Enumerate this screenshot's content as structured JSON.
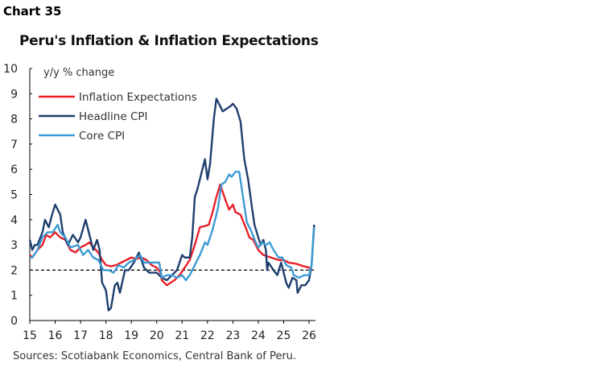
{
  "chart_label": "Chart 35",
  "source": "Sources: Scotiabank Economics, Central Bank of Peru.",
  "chart_data": {
    "type": "line",
    "title": "Peru's Inflation & Inflation Expectations",
    "ylabel": "y/y % change",
    "xlabel": "",
    "xlim": [
      15,
      26.3
    ],
    "ylim": [
      0,
      10
    ],
    "xticks": [
      "15",
      "16",
      "17",
      "18",
      "19",
      "20",
      "21",
      "22",
      "23",
      "24",
      "25",
      "26"
    ],
    "yticks": [
      "0",
      "1",
      "2",
      "3",
      "4",
      "5",
      "6",
      "7",
      "8",
      "9",
      "10"
    ],
    "reference_line": {
      "y": 2,
      "style": "dashed",
      "color": "#000000"
    },
    "legend": "top-left",
    "series": [
      {
        "name": "Inflation Expectations",
        "color": "#e8202a",
        "points": [
          [
            15.0,
            2.6
          ],
          [
            15.1,
            2.5
          ],
          [
            15.3,
            2.8
          ],
          [
            15.5,
            3.0
          ],
          [
            15.65,
            3.4
          ],
          [
            15.8,
            3.3
          ],
          [
            16.0,
            3.5
          ],
          [
            16.2,
            3.3
          ],
          [
            16.4,
            3.2
          ],
          [
            16.6,
            2.8
          ],
          [
            16.8,
            2.7
          ],
          [
            17.0,
            2.9
          ],
          [
            17.2,
            3.0
          ],
          [
            17.35,
            3.1
          ],
          [
            17.5,
            2.9
          ],
          [
            17.7,
            2.7
          ],
          [
            17.85,
            2.4
          ],
          [
            18.0,
            2.2
          ],
          [
            18.2,
            2.15
          ],
          [
            18.4,
            2.2
          ],
          [
            18.6,
            2.3
          ],
          [
            18.8,
            2.4
          ],
          [
            19.0,
            2.5
          ],
          [
            19.2,
            2.45
          ],
          [
            19.4,
            2.5
          ],
          [
            19.6,
            2.4
          ],
          [
            19.8,
            2.2
          ],
          [
            20.0,
            2.1
          ],
          [
            20.15,
            1.9
          ],
          [
            20.2,
            1.6
          ],
          [
            20.4,
            1.4
          ],
          [
            20.55,
            1.5
          ],
          [
            20.7,
            1.6
          ],
          [
            20.9,
            1.8
          ],
          [
            21.1,
            2.1
          ],
          [
            21.3,
            2.4
          ],
          [
            21.5,
            3.0
          ],
          [
            21.7,
            3.7
          ],
          [
            21.9,
            3.75
          ],
          [
            22.05,
            3.8
          ],
          [
            22.2,
            4.3
          ],
          [
            22.35,
            4.9
          ],
          [
            22.5,
            5.4
          ],
          [
            22.6,
            5.1
          ],
          [
            22.7,
            4.8
          ],
          [
            22.85,
            4.4
          ],
          [
            23.0,
            4.6
          ],
          [
            23.1,
            4.3
          ],
          [
            23.3,
            4.2
          ],
          [
            23.5,
            3.7
          ],
          [
            23.65,
            3.3
          ],
          [
            23.8,
            3.2
          ],
          [
            24.0,
            2.8
          ],
          [
            24.2,
            2.6
          ],
          [
            24.5,
            2.5
          ],
          [
            24.8,
            2.4
          ],
          [
            25.0,
            2.4
          ],
          [
            25.2,
            2.3
          ],
          [
            25.5,
            2.25
          ],
          [
            25.8,
            2.15
          ],
          [
            26.0,
            2.1
          ],
          [
            26.1,
            2.0
          ]
        ]
      },
      {
        "name": "Headline CPI",
        "color": "#1f3f6e",
        "points": [
          [
            15.0,
            3.2
          ],
          [
            15.1,
            2.8
          ],
          [
            15.2,
            3.0
          ],
          [
            15.3,
            3.0
          ],
          [
            15.5,
            3.5
          ],
          [
            15.6,
            4.0
          ],
          [
            15.75,
            3.7
          ],
          [
            15.85,
            4.1
          ],
          [
            16.0,
            4.6
          ],
          [
            16.2,
            4.2
          ],
          [
            16.3,
            3.5
          ],
          [
            16.5,
            3.0
          ],
          [
            16.7,
            3.4
          ],
          [
            16.9,
            3.1
          ],
          [
            17.0,
            3.3
          ],
          [
            17.2,
            4.0
          ],
          [
            17.3,
            3.6
          ],
          [
            17.5,
            2.8
          ],
          [
            17.65,
            3.2
          ],
          [
            17.75,
            2.8
          ],
          [
            17.85,
            1.5
          ],
          [
            18.0,
            1.2
          ],
          [
            18.1,
            0.4
          ],
          [
            18.2,
            0.5
          ],
          [
            18.35,
            1.4
          ],
          [
            18.45,
            1.5
          ],
          [
            18.55,
            1.1
          ],
          [
            18.75,
            2.0
          ],
          [
            18.9,
            2.0
          ],
          [
            19.1,
            2.3
          ],
          [
            19.3,
            2.7
          ],
          [
            19.5,
            2.1
          ],
          [
            19.7,
            1.9
          ],
          [
            20.0,
            1.9
          ],
          [
            20.2,
            1.7
          ],
          [
            20.4,
            1.6
          ],
          [
            20.6,
            1.8
          ],
          [
            20.8,
            2.0
          ],
          [
            21.0,
            2.6
          ],
          [
            21.1,
            2.5
          ],
          [
            21.3,
            2.5
          ],
          [
            21.4,
            3.3
          ],
          [
            21.5,
            4.9
          ],
          [
            21.6,
            5.2
          ],
          [
            21.75,
            5.8
          ],
          [
            21.9,
            6.4
          ],
          [
            22.0,
            5.6
          ],
          [
            22.1,
            6.2
          ],
          [
            22.25,
            8.0
          ],
          [
            22.35,
            8.8
          ],
          [
            22.5,
            8.5
          ],
          [
            22.6,
            8.3
          ],
          [
            22.75,
            8.4
          ],
          [
            22.9,
            8.5
          ],
          [
            23.0,
            8.6
          ],
          [
            23.15,
            8.4
          ],
          [
            23.3,
            7.9
          ],
          [
            23.45,
            6.4
          ],
          [
            23.6,
            5.6
          ],
          [
            23.75,
            4.5
          ],
          [
            23.85,
            3.8
          ],
          [
            24.0,
            3.3
          ],
          [
            24.1,
            3.0
          ],
          [
            24.2,
            3.2
          ],
          [
            24.3,
            2.8
          ],
          [
            24.35,
            2.0
          ],
          [
            24.4,
            2.3
          ],
          [
            24.6,
            2.0
          ],
          [
            24.75,
            1.8
          ],
          [
            24.9,
            2.3
          ],
          [
            25.0,
            1.9
          ],
          [
            25.1,
            1.5
          ],
          [
            25.2,
            1.3
          ],
          [
            25.35,
            1.7
          ],
          [
            25.5,
            1.6
          ],
          [
            25.55,
            1.1
          ],
          [
            25.7,
            1.4
          ],
          [
            25.85,
            1.4
          ],
          [
            26.0,
            1.6
          ],
          [
            26.1,
            2.2
          ],
          [
            26.2,
            3.8
          ]
        ]
      },
      {
        "name": "Core CPI",
        "color": "#3d9bd4",
        "points": [
          [
            15.0,
            2.5
          ],
          [
            15.1,
            2.5
          ],
          [
            15.3,
            2.8
          ],
          [
            15.5,
            3.3
          ],
          [
            15.7,
            3.5
          ],
          [
            15.9,
            3.5
          ],
          [
            16.1,
            3.8
          ],
          [
            16.2,
            3.5
          ],
          [
            16.4,
            3.3
          ],
          [
            16.6,
            2.9
          ],
          [
            16.9,
            3.0
          ],
          [
            17.1,
            2.6
          ],
          [
            17.3,
            2.8
          ],
          [
            17.5,
            2.5
          ],
          [
            17.7,
            2.4
          ],
          [
            17.9,
            2.0
          ],
          [
            18.1,
            2.0
          ],
          [
            18.3,
            1.9
          ],
          [
            18.5,
            2.2
          ],
          [
            18.7,
            2.1
          ],
          [
            18.9,
            2.3
          ],
          [
            19.1,
            2.4
          ],
          [
            19.35,
            2.6
          ],
          [
            19.5,
            2.3
          ],
          [
            19.7,
            2.3
          ],
          [
            19.9,
            2.3
          ],
          [
            20.1,
            2.3
          ],
          [
            20.2,
            1.7
          ],
          [
            20.4,
            1.8
          ],
          [
            20.6,
            1.8
          ],
          [
            20.8,
            1.7
          ],
          [
            21.0,
            1.8
          ],
          [
            21.15,
            1.6
          ],
          [
            21.3,
            1.8
          ],
          [
            21.5,
            2.2
          ],
          [
            21.7,
            2.6
          ],
          [
            21.9,
            3.1
          ],
          [
            22.0,
            3.0
          ],
          [
            22.2,
            3.6
          ],
          [
            22.4,
            4.4
          ],
          [
            22.55,
            5.4
          ],
          [
            22.7,
            5.5
          ],
          [
            22.85,
            5.8
          ],
          [
            22.95,
            5.7
          ],
          [
            23.1,
            5.9
          ],
          [
            23.25,
            5.9
          ],
          [
            23.4,
            4.9
          ],
          [
            23.55,
            3.9
          ],
          [
            23.7,
            3.6
          ],
          [
            23.9,
            3.1
          ],
          [
            24.0,
            2.9
          ],
          [
            24.15,
            3.1
          ],
          [
            24.3,
            3.0
          ],
          [
            24.45,
            3.1
          ],
          [
            24.6,
            2.8
          ],
          [
            24.8,
            2.5
          ],
          [
            24.95,
            2.5
          ],
          [
            25.1,
            2.2
          ],
          [
            25.3,
            2.1
          ],
          [
            25.4,
            1.8
          ],
          [
            25.6,
            1.7
          ],
          [
            25.8,
            1.8
          ],
          [
            26.0,
            1.8
          ],
          [
            26.1,
            2.2
          ],
          [
            26.2,
            3.7
          ]
        ]
      }
    ]
  }
}
